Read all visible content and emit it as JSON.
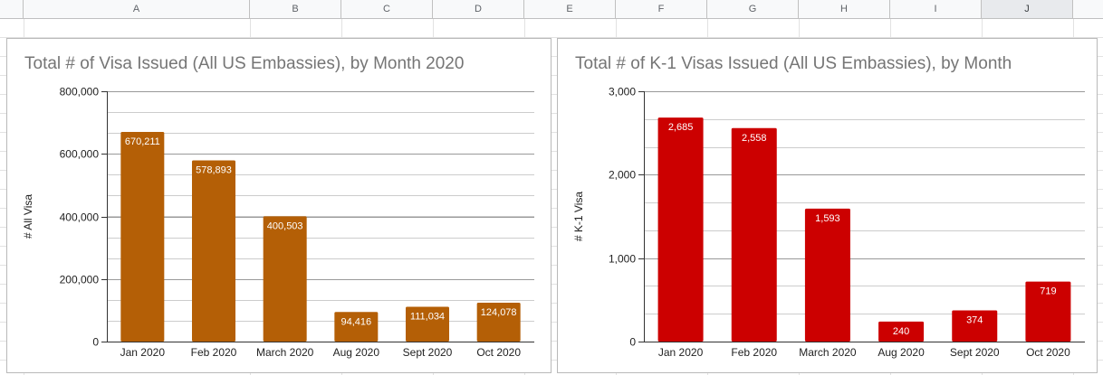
{
  "sheet": {
    "columns": [
      "",
      "A",
      "B",
      "C",
      "D",
      "E",
      "F",
      "G",
      "H",
      "I",
      "J",
      ""
    ],
    "selected_column": "J"
  },
  "chart_data": [
    {
      "type": "bar",
      "title": "Total # of Visa Issued (All US Embassies), by Month 2020",
      "xlabel": "",
      "ylabel": "# All Visa",
      "categories": [
        "Jan 2020",
        "Feb 2020",
        "March 2020",
        "Aug 2020",
        "Sept 2020",
        "Oct 2020"
      ],
      "values": [
        670211,
        578893,
        400503,
        94416,
        111034,
        124078
      ],
      "data_labels": [
        "670,211",
        "578,893",
        "400,503",
        "94,416",
        "111,034",
        "124,078"
      ],
      "yticks": [
        0,
        200000,
        400000,
        600000,
        800000
      ],
      "ytick_labels": [
        "0",
        "200,000",
        "400,000",
        "600,000",
        "800,000"
      ],
      "ylim": [
        0,
        800000
      ],
      "color": "#b45f06",
      "grid": true,
      "legend": "none"
    },
    {
      "type": "bar",
      "title": "Total # of K-1 Visas Issued (All US Embassies), by Month",
      "xlabel": "",
      "ylabel": "# K-1 Visa",
      "categories": [
        "Jan 2020",
        "Feb 2020",
        "March 2020",
        "Aug 2020",
        "Sept 2020",
        "Oct 2020"
      ],
      "values": [
        2685,
        2558,
        1593,
        240,
        374,
        719
      ],
      "data_labels": [
        "2,685",
        "2,558",
        "1,593",
        "240",
        "374",
        "719"
      ],
      "yticks": [
        0,
        1000,
        2000,
        3000
      ],
      "ytick_labels": [
        "0",
        "1,000",
        "2,000",
        "3,000"
      ],
      "ylim": [
        0,
        3000
      ],
      "color": "#cc0000",
      "grid": true,
      "legend": "none"
    }
  ]
}
